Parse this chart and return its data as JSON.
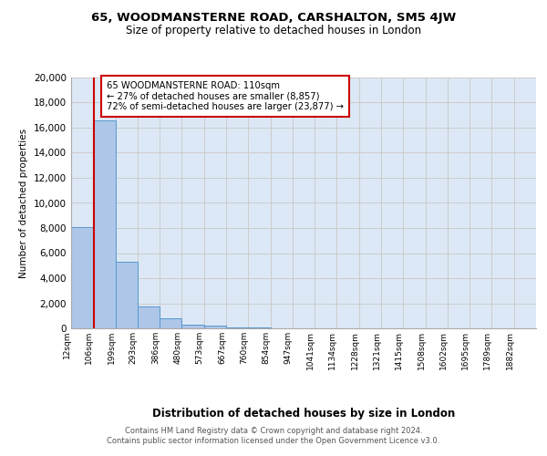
{
  "title": "65, WOODMANSTERNE ROAD, CARSHALTON, SM5 4JW",
  "subtitle": "Size of property relative to detached houses in London",
  "xlabel": "Distribution of detached houses by size in London",
  "ylabel": "Number of detached properties",
  "bar_color": "#aec6e8",
  "bar_edge_color": "#5599cc",
  "grid_color": "#cccccc",
  "bg_color": "#dce8f5",
  "categories": [
    "12sqm",
    "106sqm",
    "199sqm",
    "293sqm",
    "386sqm",
    "480sqm",
    "573sqm",
    "667sqm",
    "760sqm",
    "854sqm",
    "947sqm",
    "1041sqm",
    "1134sqm",
    "1228sqm",
    "1321sqm",
    "1415sqm",
    "1508sqm",
    "1602sqm",
    "1695sqm",
    "1789sqm",
    "1882sqm"
  ],
  "values": [
    8100,
    16600,
    5300,
    1750,
    800,
    300,
    200,
    100,
    50,
    0,
    0,
    0,
    0,
    0,
    0,
    0,
    0,
    0,
    0,
    0,
    0
  ],
  "ylim": [
    0,
    20000
  ],
  "yticks": [
    0,
    2000,
    4000,
    6000,
    8000,
    10000,
    12000,
    14000,
    16000,
    18000,
    20000
  ],
  "property_line_color": "#cc0000",
  "annotation_title": "65 WOODMANSTERNE ROAD: 110sqm",
  "annotation_line1": "← 27% of detached houses are smaller (8,857)",
  "annotation_line2": "72% of semi-detached houses are larger (23,877) →",
  "annotation_box_color": "#ffffff",
  "annotation_border_color": "#cc0000",
  "footer_line1": "Contains HM Land Registry data © Crown copyright and database right 2024.",
  "footer_line2": "Contains public sector information licensed under the Open Government Licence v3.0."
}
